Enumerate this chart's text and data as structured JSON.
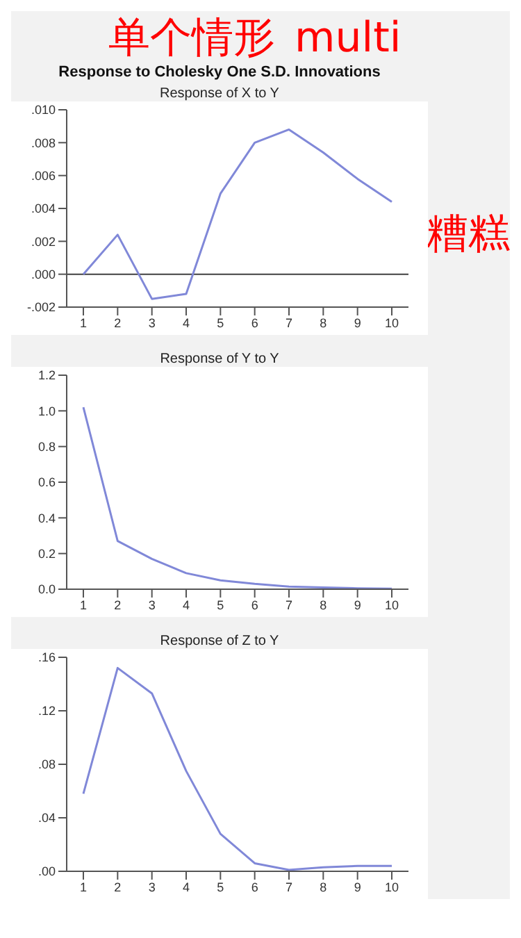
{
  "chart_data": [
    {
      "type": "line",
      "title": "Response of X to Y",
      "annotations": [
        "Response to Cholesky One S.D. Innovations",
        "单个情形",
        "multi",
        "糟糕"
      ],
      "categories": [
        "1",
        "2",
        "3",
        "4",
        "5",
        "6",
        "7",
        "8",
        "9",
        "10"
      ],
      "series": [
        {
          "color": "#8088d8",
          "values": [
            0.0,
            0.0024,
            -0.0015,
            -0.0012,
            0.0049,
            0.008,
            0.0088,
            0.0074,
            0.0058,
            0.0044
          ]
        }
      ],
      "ylim": [
        -0.002,
        0.01
      ],
      "yticks": [
        {
          "value": -0.002,
          "label": "-.002"
        },
        {
          "value": 0,
          "label": ".000"
        },
        {
          "value": 0.002,
          "label": ".002"
        },
        {
          "value": 0.004,
          "label": ".004"
        },
        {
          "value": 0.006,
          "label": ".006"
        },
        {
          "value": 0.008,
          "label": ".008"
        },
        {
          "value": 0.01,
          "label": ".010"
        }
      ],
      "ref_lines": [
        {
          "axis": "y",
          "value": 0,
          "color": "#404040"
        }
      ]
    },
    {
      "type": "line",
      "title": "Response of Y to Y",
      "categories": [
        "1",
        "2",
        "3",
        "4",
        "5",
        "6",
        "7",
        "8",
        "9",
        "10"
      ],
      "series": [
        {
          "color": "#8088d8",
          "values": [
            1.02,
            0.27,
            0.17,
            0.09,
            0.05,
            0.03,
            0.015,
            0.01,
            0.005,
            0.003
          ]
        }
      ],
      "ylim": [
        0,
        1.2
      ],
      "yticks": [
        {
          "value": 0,
          "label": "0.0"
        },
        {
          "value": 0.2,
          "label": "0.2"
        },
        {
          "value": 0.4,
          "label": "0.4"
        },
        {
          "value": 0.6,
          "label": "0.6"
        },
        {
          "value": 0.8,
          "label": "0.8"
        },
        {
          "value": 1.0,
          "label": "1.0"
        },
        {
          "value": 1.2,
          "label": "1.2"
        }
      ]
    },
    {
      "type": "line",
      "title": "Response of Z to Y",
      "categories": [
        "1",
        "2",
        "3",
        "4",
        "5",
        "6",
        "7",
        "8",
        "9",
        "10"
      ],
      "series": [
        {
          "color": "#8088d8",
          "values": [
            0.058,
            0.152,
            0.133,
            0.075,
            0.028,
            0.006,
            0.001,
            0.003,
            0.004,
            0.004
          ]
        }
      ],
      "ylim": [
        0,
        0.16
      ],
      "yticks": [
        {
          "value": 0,
          "label": ".00"
        },
        {
          "value": 0.04,
          "label": ".04"
        },
        {
          "value": 0.08,
          "label": ".08"
        },
        {
          "value": 0.12,
          "label": ".12"
        },
        {
          "value": 0.16,
          "label": ".16"
        }
      ]
    }
  ]
}
